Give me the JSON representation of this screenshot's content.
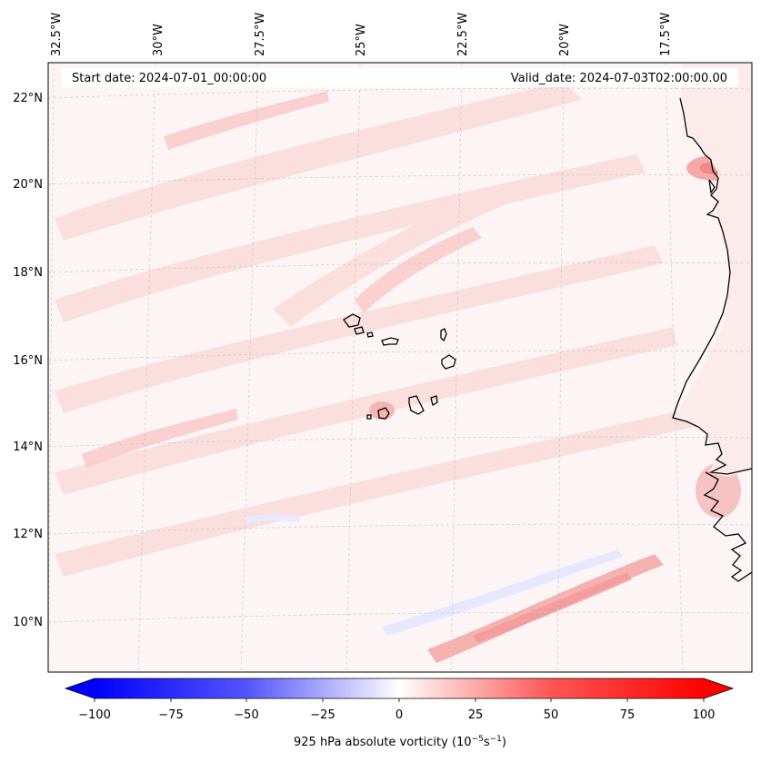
{
  "header": {
    "start_date": "Start date: 2024-07-01_00:00:00",
    "valid_date": "Valid_date: 2024-07-03T02:00:00.00"
  },
  "axes": {
    "lon_labels": [
      "32.5°W",
      "30°W",
      "27.5°W",
      "25°W",
      "22.5°W",
      "20°W",
      "17.5°W"
    ],
    "lat_labels": [
      "22°N",
      "20°N",
      "18°N",
      "16°N",
      "14°N",
      "12°N",
      "10°N"
    ]
  },
  "colorbar": {
    "ticks": [
      "−100",
      "−75",
      "−50",
      "−25",
      "0",
      "25",
      "50",
      "75",
      "100"
    ],
    "label_main": "925 hPa absolute vorticity (10",
    "label_exp1": "−5",
    "label_mid": "s",
    "label_exp2": "−1",
    "label_end": ")",
    "min": -100,
    "max": 100,
    "negative_color": "#0000ff",
    "positive_color": "#ff0000"
  },
  "colors": {
    "field_background": "#fdf4f4",
    "coastline": "#000000",
    "gridline": "#bdbdbd"
  }
}
